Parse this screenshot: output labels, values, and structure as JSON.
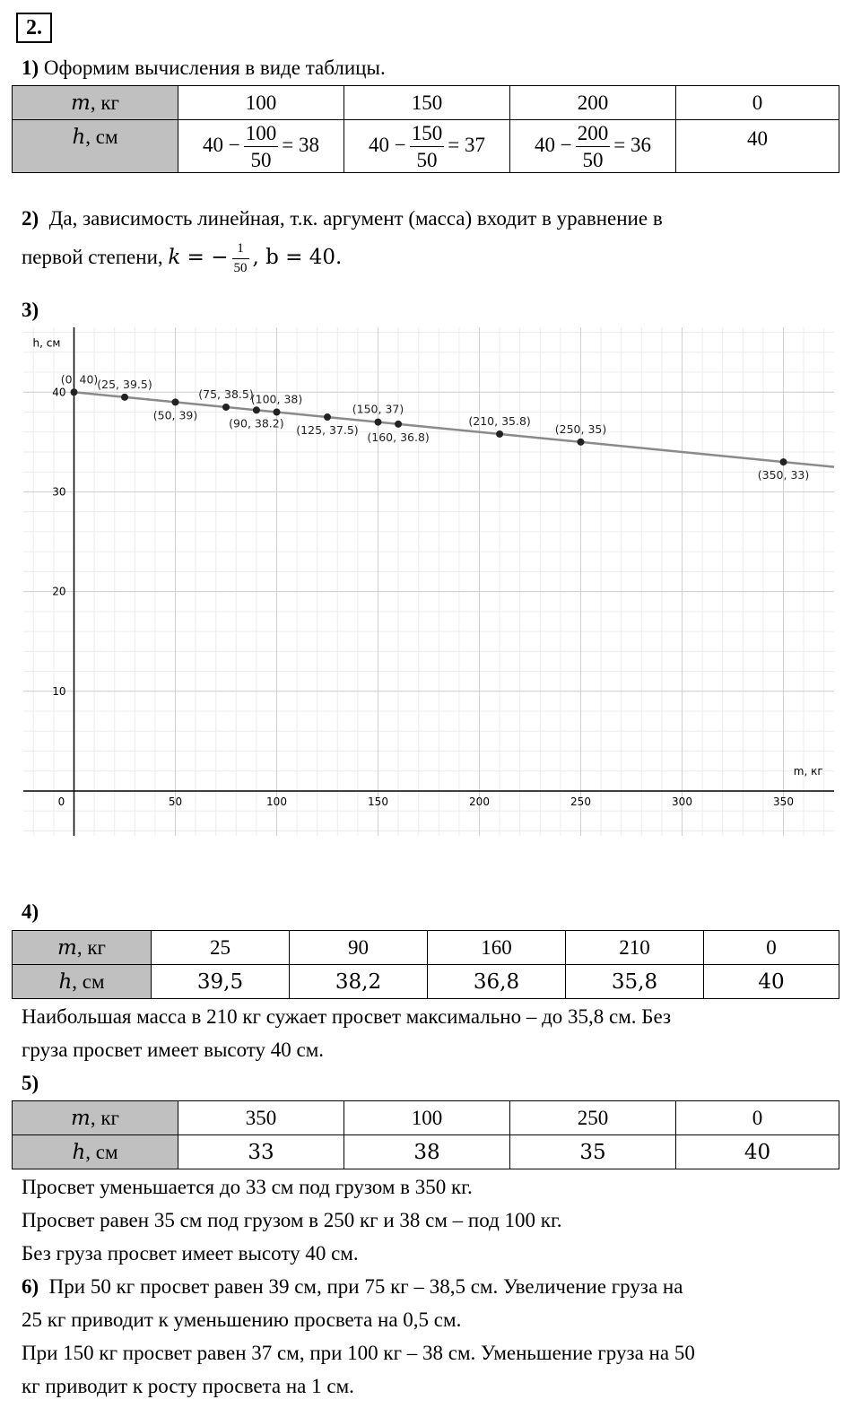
{
  "task_number": "2.",
  "part1": {
    "label": "1)",
    "text": "Оформим вычисления в виде таблицы.",
    "row_m_label": "m",
    "row_m_unit": ", кг",
    "row_h_label": "h",
    "row_h_unit": ", см",
    "m_values": [
      "100",
      "150",
      "200",
      "0"
    ],
    "h_cells": [
      {
        "prefix": "40 −",
        "num": "100",
        "den": "50",
        "suffix": "= 38"
      },
      {
        "prefix": "40 −",
        "num": "150",
        "den": "50",
        "suffix": "= 37"
      },
      {
        "prefix": "40 −",
        "num": "200",
        "den": "50",
        "suffix": "= 36"
      }
    ],
    "h_last": "40"
  },
  "part2": {
    "label": "2)",
    "line1": "Да, зависимость линейная, т.к. аргумент (масса) входит в уравнение в",
    "line2_prefix": "первой степени, ",
    "k_lhs": "k = −",
    "k_num": "1",
    "k_den": "50",
    "b_text": ", b = 40."
  },
  "part3": {
    "label": "3)"
  },
  "chart_data": {
    "type": "line",
    "xlabel": "m, кг",
    "ylabel": "h, см",
    "xlim": [
      -25,
      375
    ],
    "ylim": [
      -4.5,
      46.5
    ],
    "x_ticks": [
      0,
      50,
      100,
      150,
      200,
      250,
      300,
      350
    ],
    "x_tick_labels": [
      "0",
      "50",
      "100",
      "150",
      "200",
      "250",
      "300",
      "350"
    ],
    "y_ticks": [
      10,
      20,
      30,
      40
    ],
    "y_tick_labels": [
      "10",
      "20",
      "30",
      "40"
    ],
    "grid": true,
    "line": {
      "slope": -0.02,
      "intercept": 40,
      "color": "#8a8a8a"
    },
    "points": [
      {
        "x": 0,
        "y": 40,
        "label": "(0, 40)"
      },
      {
        "x": 25,
        "y": 39.5,
        "label": "(25, 39.5)"
      },
      {
        "x": 50,
        "y": 39,
        "label": "(50, 39)"
      },
      {
        "x": 75,
        "y": 38.5,
        "label": "(75, 38.5)"
      },
      {
        "x": 90,
        "y": 38.2,
        "label": "(90, 38.2)"
      },
      {
        "x": 100,
        "y": 38,
        "label": "(100, 38)"
      },
      {
        "x": 125,
        "y": 37.5,
        "label": "(125, 37.5)"
      },
      {
        "x": 150,
        "y": 37,
        "label": "(150, 37)"
      },
      {
        "x": 160,
        "y": 36.8,
        "label": "(160, 36.8)"
      },
      {
        "x": 210,
        "y": 35.8,
        "label": "(210, 35.8)"
      },
      {
        "x": 250,
        "y": 35,
        "label": "(250, 35)"
      },
      {
        "x": 350,
        "y": 33,
        "label": "(350, 33)"
      }
    ]
  },
  "part4": {
    "label": "4)",
    "m_values": [
      "25",
      "90",
      "160",
      "210",
      "0"
    ],
    "h_values": [
      "39,5",
      "38,2",
      "36,8",
      "35,8",
      "40"
    ],
    "text1": "Наибольшая масса в 210 кг сужает просвет максимально – до 35,8 см. Без",
    "text2": "груза просвет имеет высоту 40 см."
  },
  "part5": {
    "label": "5)",
    "m_values": [
      "350",
      "100",
      "250",
      "0"
    ],
    "h_values": [
      "33",
      "38",
      "35",
      "40"
    ],
    "text1": "Просвет уменьшается до 33 см под грузом в 350 кг.",
    "text2": "Просвет равен 35 см под грузом в 250 кг и 38 см – под 100 кг.",
    "text3": "Без груза просвет имеет высоту 40 см."
  },
  "part6": {
    "label": "6)",
    "text1": "При 50 кг просвет равен 39 см, при 75 кг – 38,5 см. Увеличение груза на",
    "text2": "25 кг приводит к уменьшению просвета на 0,5 см.",
    "text3": "При 150 кг просвет равен 37 см, при 100 кг – 38 см. Уменьшение груза на 50",
    "text4": "кг приводит к росту просвета на 1 см."
  }
}
